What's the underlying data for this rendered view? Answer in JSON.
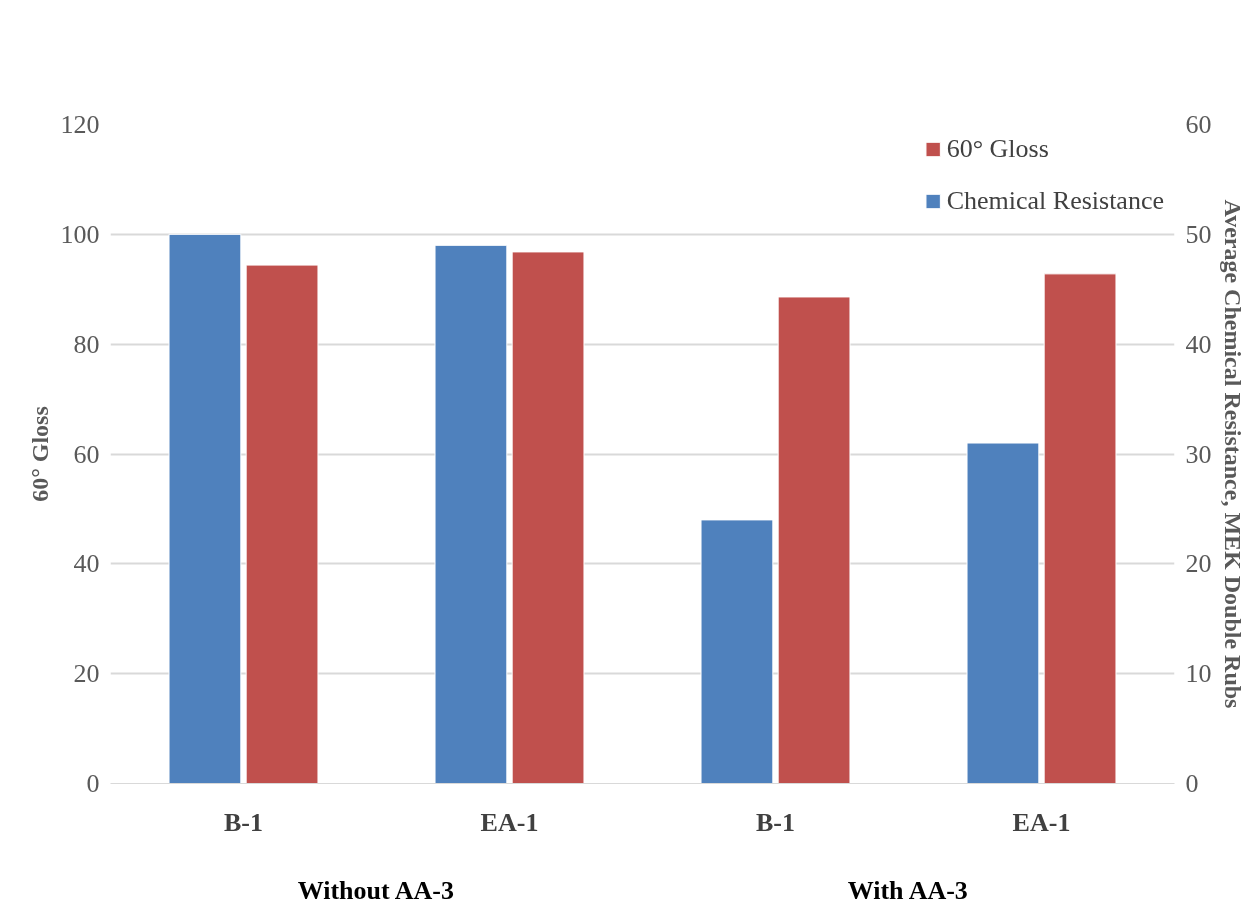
{
  "chart_data": {
    "type": "bar",
    "categories": [
      "B-1",
      "EA-1",
      "B-1",
      "EA-1"
    ],
    "series": [
      {
        "name": "Chemical Resistance",
        "color": "#4f81bd",
        "values": [
          50,
          49,
          24,
          31
        ],
        "axis": "y2"
      },
      {
        "name": "60° Gloss",
        "color": "#c0504d",
        "values": [
          94.4,
          96.8,
          88.6,
          92.8
        ]
      }
    ],
    "ylabel": "60° Gloss",
    "y2label": "Average Chemical Resistance, MEK Double Rubs",
    "ylim": [
      0,
      120
    ],
    "yticks": [
      0,
      20,
      40,
      60,
      80,
      100,
      120
    ],
    "y2lim": [
      0,
      60
    ],
    "y2ticks": [
      0,
      10,
      20,
      30,
      40,
      50,
      60
    ],
    "annotations": [
      "Without AA-3",
      "With AA-3"
    ],
    "grid": "y",
    "legend": "top right"
  }
}
